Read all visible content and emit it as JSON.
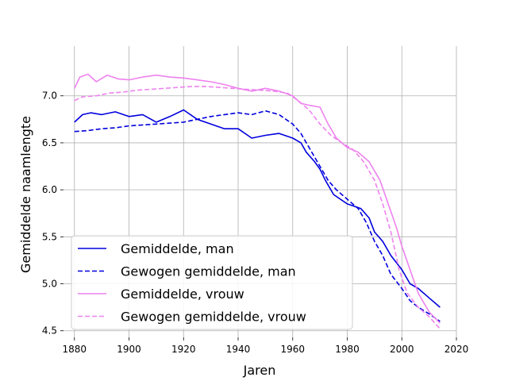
{
  "chart_data": {
    "type": "line",
    "title": "",
    "xlabel": "Jaren",
    "ylabel": "Gemiddelde naamlengte",
    "xlim": [
      1876,
      2020
    ],
    "ylim": [
      4.43,
      7.53
    ],
    "xticks": [
      1880,
      1900,
      1920,
      1940,
      1960,
      1980,
      2000,
      2020
    ],
    "yticks": [
      4.5,
      5.0,
      5.5,
      6.0,
      6.5,
      7.0
    ],
    "xtick_labels": [
      "1880",
      "1900",
      "1920",
      "1940",
      "1960",
      "1980",
      "2000",
      "2020"
    ],
    "ytick_labels": [
      "4.5",
      "5.0",
      "5.5",
      "6.0",
      "6.5",
      "7.0"
    ],
    "grid": true,
    "legend_position": "lower-left",
    "series": [
      {
        "name": "Gemiddelde, man",
        "color": "#0000dd",
        "dash": "solid",
        "points": [
          [
            1880,
            6.72
          ],
          [
            1883,
            6.8
          ],
          [
            1886,
            6.82
          ],
          [
            1890,
            6.8
          ],
          [
            1895,
            6.83
          ],
          [
            1900,
            6.78
          ],
          [
            1905,
            6.8
          ],
          [
            1910,
            6.72
          ],
          [
            1915,
            6.78
          ],
          [
            1920,
            6.85
          ],
          [
            1925,
            6.75
          ],
          [
            1930,
            6.7
          ],
          [
            1935,
            6.65
          ],
          [
            1940,
            6.65
          ],
          [
            1945,
            6.55
          ],
          [
            1950,
            6.58
          ],
          [
            1955,
            6.6
          ],
          [
            1960,
            6.55
          ],
          [
            1963,
            6.5
          ],
          [
            1965,
            6.4
          ],
          [
            1968,
            6.3
          ],
          [
            1970,
            6.22
          ],
          [
            1972,
            6.1
          ],
          [
            1975,
            5.95
          ],
          [
            1980,
            5.85
          ],
          [
            1985,
            5.8
          ],
          [
            1988,
            5.7
          ],
          [
            1990,
            5.55
          ],
          [
            1993,
            5.45
          ],
          [
            1996,
            5.3
          ],
          [
            2000,
            5.15
          ],
          [
            2003,
            5.0
          ],
          [
            2006,
            4.95
          ],
          [
            2010,
            4.85
          ],
          [
            2014,
            4.75
          ]
        ]
      },
      {
        "name": "Gewogen gemiddelde, man",
        "color": "#0000dd",
        "dash": "dashed",
        "points": [
          [
            1880,
            6.62
          ],
          [
            1885,
            6.63
          ],
          [
            1890,
            6.65
          ],
          [
            1895,
            6.66
          ],
          [
            1900,
            6.68
          ],
          [
            1905,
            6.69
          ],
          [
            1910,
            6.7
          ],
          [
            1915,
            6.71
          ],
          [
            1920,
            6.72
          ],
          [
            1925,
            6.75
          ],
          [
            1930,
            6.78
          ],
          [
            1935,
            6.8
          ],
          [
            1940,
            6.82
          ],
          [
            1945,
            6.8
          ],
          [
            1950,
            6.84
          ],
          [
            1955,
            6.8
          ],
          [
            1960,
            6.7
          ],
          [
            1963,
            6.6
          ],
          [
            1966,
            6.45
          ],
          [
            1970,
            6.25
          ],
          [
            1973,
            6.1
          ],
          [
            1976,
            6.0
          ],
          [
            1980,
            5.9
          ],
          [
            1984,
            5.8
          ],
          [
            1987,
            5.65
          ],
          [
            1990,
            5.45
          ],
          [
            1993,
            5.3
          ],
          [
            1996,
            5.1
          ],
          [
            2000,
            4.95
          ],
          [
            2003,
            4.82
          ],
          [
            2006,
            4.75
          ],
          [
            2010,
            4.68
          ],
          [
            2014,
            4.6
          ]
        ]
      },
      {
        "name": "Gemiddelde, vrouw",
        "color": "#ee82ee",
        "dash": "solid",
        "points": [
          [
            1880,
            7.08
          ],
          [
            1882,
            7.2
          ],
          [
            1885,
            7.23
          ],
          [
            1888,
            7.15
          ],
          [
            1892,
            7.22
          ],
          [
            1896,
            7.18
          ],
          [
            1900,
            7.17
          ],
          [
            1905,
            7.2
          ],
          [
            1910,
            7.22
          ],
          [
            1915,
            7.2
          ],
          [
            1920,
            7.19
          ],
          [
            1925,
            7.17
          ],
          [
            1930,
            7.15
          ],
          [
            1935,
            7.12
          ],
          [
            1940,
            7.08
          ],
          [
            1945,
            7.05
          ],
          [
            1950,
            7.08
          ],
          [
            1955,
            7.05
          ],
          [
            1960,
            7.0
          ],
          [
            1963,
            6.92
          ],
          [
            1966,
            6.9
          ],
          [
            1970,
            6.88
          ],
          [
            1973,
            6.7
          ],
          [
            1976,
            6.55
          ],
          [
            1980,
            6.45
          ],
          [
            1984,
            6.4
          ],
          [
            1988,
            6.3
          ],
          [
            1992,
            6.1
          ],
          [
            1995,
            5.85
          ],
          [
            1998,
            5.6
          ],
          [
            2000,
            5.4
          ],
          [
            2003,
            5.15
          ],
          [
            2006,
            4.9
          ],
          [
            2010,
            4.7
          ],
          [
            2014,
            4.58
          ]
        ]
      },
      {
        "name": "Gewogen gemiddelde, vrouw",
        "color": "#ee82ee",
        "dash": "dashed",
        "points": [
          [
            1880,
            6.95
          ],
          [
            1883,
            6.99
          ],
          [
            1888,
            7.0
          ],
          [
            1893,
            7.03
          ],
          [
            1898,
            7.04
          ],
          [
            1903,
            7.06
          ],
          [
            1908,
            7.07
          ],
          [
            1913,
            7.08
          ],
          [
            1918,
            7.09
          ],
          [
            1923,
            7.1
          ],
          [
            1928,
            7.1
          ],
          [
            1933,
            7.09
          ],
          [
            1938,
            7.08
          ],
          [
            1943,
            7.07
          ],
          [
            1948,
            7.06
          ],
          [
            1953,
            7.05
          ],
          [
            1958,
            7.03
          ],
          [
            1962,
            6.95
          ],
          [
            1966,
            6.85
          ],
          [
            1970,
            6.7
          ],
          [
            1974,
            6.58
          ],
          [
            1978,
            6.5
          ],
          [
            1982,
            6.43
          ],
          [
            1986,
            6.3
          ],
          [
            1990,
            6.1
          ],
          [
            1993,
            5.85
          ],
          [
            1996,
            5.55
          ],
          [
            1999,
            5.15
          ],
          [
            2002,
            4.9
          ],
          [
            2006,
            4.75
          ],
          [
            2010,
            4.65
          ],
          [
            2014,
            4.52
          ]
        ]
      }
    ]
  }
}
